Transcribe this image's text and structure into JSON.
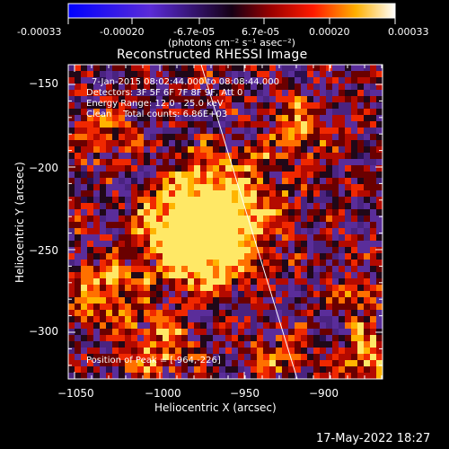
{
  "colorbar": {
    "ticks": [
      "-0.00033",
      "-0.00020",
      "-6.7e-05",
      "6.7e-05",
      "0.00020",
      "0.00033"
    ],
    "units": "(photons cm⁻² s⁻¹ asec⁻²)"
  },
  "plot": {
    "title": "Reconstructed RHESSI Image",
    "xlabel": "Heliocentric X (arcsec)",
    "ylabel": "Heliocentric Y (arcsec)",
    "xticks": [
      "−1050",
      "−1000",
      "−950",
      "−900"
    ],
    "yticks": [
      "−150",
      "−200",
      "−250",
      "−300"
    ],
    "info": {
      "line1": "7-Jan-2015 08:02:44.000 to 08:08:44.000",
      "line2": "Detectors: 3F 5F 6F 7F 8F 9F, Att 0",
      "line3": "Energy Range: 12.0 - 25.0 keV",
      "line4": "Clean    Total counts: 6.86E+03"
    },
    "peak": "Position of Peak = [-964,-226]"
  },
  "footer": {
    "timestamp": "17-May-2022 18:27"
  }
}
